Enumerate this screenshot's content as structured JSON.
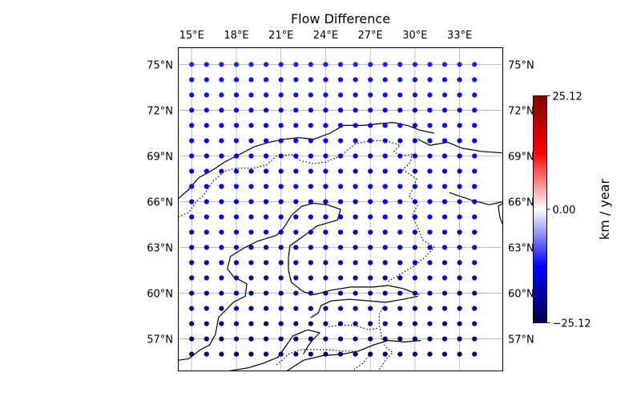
{
  "chart_data": {
    "type": "scatter",
    "title": "Flow Difference",
    "x_ticks": [
      {
        "value": 15,
        "label": "15°E"
      },
      {
        "value": 18,
        "label": "18°E"
      },
      {
        "value": 21,
        "label": "21°E"
      },
      {
        "value": 24,
        "label": "24°E"
      },
      {
        "value": 27,
        "label": "27°E"
      },
      {
        "value": 30,
        "label": "30°E"
      },
      {
        "value": 33,
        "label": "33°E"
      }
    ],
    "y_ticks": [
      {
        "value": 57,
        "label": "57°N"
      },
      {
        "value": 60,
        "label": "60°N"
      },
      {
        "value": 63,
        "label": "63°N"
      },
      {
        "value": 66,
        "label": "66°N"
      },
      {
        "value": 69,
        "label": "69°N"
      },
      {
        "value": 72,
        "label": "72°N"
      },
      {
        "value": 75,
        "label": "75°N"
      }
    ],
    "xlim": [
      14.1,
      35.9
    ],
    "ylim": [
      54.9,
      76.1
    ],
    "grid": true,
    "points": {
      "lon_start": 15,
      "lon_step": 1,
      "lon_count": 20,
      "lat_start": 56,
      "lat_step": 1,
      "lat_count": 20,
      "value_rows_south_to_north": [
        [
          -24,
          -24,
          -24,
          -24,
          -24,
          -24,
          -24,
          -24,
          -24,
          -24,
          -24,
          -24,
          -24,
          -24,
          -24,
          -24,
          -24,
          -24,
          -24,
          -24
        ],
        [
          -23,
          -23,
          -23,
          -23,
          -23,
          -23,
          -23,
          -23,
          -23,
          -23,
          -23,
          -23,
          -23,
          -23,
          -23,
          -23,
          -23,
          -23,
          -23,
          -23
        ],
        [
          -22,
          -22,
          -22,
          -22,
          -22,
          -22,
          -22,
          -22,
          -22,
          -22,
          -22,
          -22,
          -22,
          -22,
          -22,
          -22,
          -22,
          -22,
          -22,
          -22
        ],
        [
          -21,
          -21,
          -21,
          -21,
          -21,
          -21,
          -21,
          -21,
          -21,
          -21,
          -21,
          -21,
          -21,
          -21,
          -21,
          -21,
          -21,
          -21,
          -21,
          -21
        ],
        [
          -20,
          -20,
          -20,
          -20,
          -20,
          -20,
          -20,
          -20,
          -20,
          -20,
          -20,
          -20,
          -20,
          -20,
          -20,
          -20,
          -20,
          -20,
          -20,
          -20
        ],
        [
          -19,
          -19,
          -19,
          -19,
          -19,
          -19,
          -19,
          -19,
          -19,
          -19,
          -19,
          -19,
          -19,
          -19,
          -19,
          -19,
          -19,
          -19,
          -19,
          -19
        ],
        [
          -18,
          -18,
          -18,
          -18,
          -18,
          -18,
          -18,
          -18,
          -18,
          -18,
          -18,
          -18,
          -18,
          -18,
          -18,
          -18,
          -18,
          -18,
          -18,
          -18
        ],
        [
          -17,
          -17,
          -17,
          -17,
          -17,
          -17,
          -17,
          -17,
          -17,
          -17,
          -17,
          -17,
          -17,
          -17,
          -17,
          -17,
          -17,
          -17,
          -17,
          -17
        ],
        [
          -17,
          -17,
          -17,
          -17,
          -17,
          -17,
          -17,
          -17,
          -17,
          -17,
          -17,
          -17,
          -17,
          -17,
          -17,
          -17,
          -17,
          -17,
          -17,
          -17
        ],
        [
          -16,
          -16,
          -16,
          -16,
          -16,
          -16,
          -16,
          -16,
          -16,
          -16,
          -16,
          -16,
          -16,
          -16,
          -16,
          -16,
          -16,
          -16,
          -16,
          -16
        ],
        [
          -16,
          -16,
          -16,
          -16,
          -16,
          -16,
          -16,
          -16,
          -16,
          -16,
          -16,
          -16,
          -16,
          -16,
          -16,
          -16,
          -16,
          -16,
          -16,
          -16
        ],
        [
          -15,
          -15,
          -15,
          -15,
          -15,
          -15,
          -15,
          -15,
          -15,
          -15,
          -15,
          -15,
          -15,
          -15,
          -15,
          -15,
          -15,
          -15,
          -15,
          -15
        ],
        [
          -15,
          -15,
          -15,
          -15,
          -15,
          -15,
          -15,
          -15,
          -15,
          -15,
          -15,
          -15,
          -15,
          -15,
          -15,
          -15,
          -15,
          -15,
          -15,
          -15
        ],
        [
          -14,
          -14,
          -14,
          -14,
          -14,
          -14,
          -14,
          -14,
          -14,
          -14,
          -14,
          -14,
          -14,
          -14,
          -14,
          -14,
          -14,
          -14,
          -14,
          -14
        ],
        [
          -14,
          -14,
          -14,
          -14,
          -14,
          -14,
          -14,
          -14,
          -14,
          -14,
          -14,
          -14,
          -14,
          -14,
          -14,
          -14,
          -14,
          -14,
          -14,
          -14
        ],
        [
          -13,
          -13,
          -13,
          -13,
          -13,
          -13,
          -13,
          -13,
          -13,
          -13,
          -13,
          -13,
          -13,
          -13,
          -13,
          -13,
          -13,
          -13,
          -13,
          -13
        ],
        [
          -13,
          -13,
          -13,
          -13,
          -13,
          -13,
          -13,
          -13,
          -13,
          -13,
          -13,
          -13,
          -13,
          -13,
          -13,
          -13,
          -13,
          -13,
          -13,
          -13
        ],
        [
          -12,
          -12,
          -12,
          -12,
          -12,
          -12,
          -12,
          -12,
          -12,
          -12,
          -12,
          -12,
          -12,
          -12,
          -12,
          -12,
          -12,
          -12,
          -12,
          -12
        ],
        [
          -12,
          -12,
          -12,
          -12,
          -12,
          -12,
          -12,
          -12,
          -12,
          -12,
          -12,
          -12,
          -12,
          -12,
          -12,
          -12,
          -12,
          -12,
          -12,
          -12
        ],
        [
          -11,
          -11,
          -11,
          -11,
          -11,
          -11,
          -11,
          -11,
          -11,
          -11,
          -11,
          -11,
          -11,
          -11,
          -11,
          -11,
          -11,
          -11,
          -11,
          -11
        ]
      ]
    },
    "coastlines": [
      [
        [
          14.1,
          66.2
        ],
        [
          14.8,
          66.8
        ],
        [
          15.5,
          67.6
        ],
        [
          16.1,
          67.9
        ],
        [
          16.6,
          68.2
        ],
        [
          17.2,
          68.6
        ],
        [
          18.2,
          69.1
        ],
        [
          19.2,
          69.6
        ],
        [
          20.2,
          69.9
        ],
        [
          21.2,
          70.1
        ],
        [
          22.2,
          70.2
        ],
        [
          23.2,
          70.1
        ],
        [
          24.3,
          70.5
        ],
        [
          25.2,
          71.0
        ],
        [
          26.5,
          71.0
        ],
        [
          27.5,
          71.1
        ],
        [
          28.5,
          71.2
        ],
        [
          29.5,
          71.0
        ],
        [
          30.3,
          70.7
        ],
        [
          31.3,
          70.5
        ]
      ],
      [
        [
          30.2,
          70.1
        ],
        [
          31.0,
          69.7
        ],
        [
          32.2,
          69.9
        ],
        [
          33.2,
          69.5
        ],
        [
          34.5,
          69.3
        ],
        [
          35.9,
          69.2
        ]
      ],
      [
        [
          32.3,
          66.6
        ],
        [
          33.8,
          66.1
        ],
        [
          35.0,
          65.8
        ],
        [
          35.9,
          66.0
        ]
      ],
      [
        [
          35.9,
          64.5
        ],
        [
          35.7,
          65.0
        ],
        [
          35.6,
          65.7
        ],
        [
          35.9,
          65.9
        ]
      ],
      [
        [
          21.4,
          54.9
        ],
        [
          22.5,
          55.6
        ],
        [
          23.8,
          55.9
        ],
        [
          25.1,
          56.0
        ],
        [
          26.2,
          56.2
        ],
        [
          27.2,
          56.6
        ],
        [
          28.2,
          56.9
        ],
        [
          29.3,
          56.8
        ],
        [
          30.4,
          56.9
        ]
      ],
      [
        [
          22.5,
          56.0
        ],
        [
          22.8,
          56.5
        ],
        [
          23.1,
          56.9
        ],
        [
          23.6,
          57.4
        ],
        [
          22.8,
          57.6
        ],
        [
          21.8,
          57.2
        ],
        [
          21.3,
          56.5
        ],
        [
          20.8,
          55.8
        ],
        [
          19.8,
          55.4
        ],
        [
          18.8,
          55.1
        ],
        [
          17.5,
          54.9
        ]
      ],
      [
        [
          14.1,
          55.6
        ],
        [
          14.8,
          55.7
        ],
        [
          15.6,
          56.3
        ],
        [
          16.2,
          56.6
        ],
        [
          16.6,
          57.3
        ],
        [
          16.8,
          58.4
        ],
        [
          17.3,
          58.9
        ],
        [
          17.8,
          59.4
        ],
        [
          18.6,
          59.8
        ],
        [
          18.7,
          60.6
        ],
        [
          17.8,
          61.1
        ],
        [
          17.4,
          61.6
        ],
        [
          17.6,
          62.4
        ],
        [
          18.4,
          62.9
        ],
        [
          19.4,
          63.4
        ],
        [
          20.7,
          63.8
        ],
        [
          21.2,
          64.3
        ],
        [
          21.7,
          65.1
        ],
        [
          22.4,
          65.7
        ],
        [
          23.2,
          65.9
        ],
        [
          24.1,
          65.8
        ],
        [
          25.0,
          65.5
        ],
        [
          24.8,
          64.8
        ],
        [
          23.4,
          64.4
        ],
        [
          22.6,
          63.8
        ],
        [
          21.6,
          63.1
        ],
        [
          21.5,
          62.3
        ],
        [
          21.5,
          61.5
        ],
        [
          21.7,
          60.7
        ],
        [
          22.5,
          60.1
        ],
        [
          23.2,
          59.9
        ],
        [
          24.4,
          60.2
        ],
        [
          25.7,
          60.4
        ],
        [
          27.2,
          60.4
        ],
        [
          28.2,
          60.5
        ],
        [
          29.2,
          60.3
        ],
        [
          30.3,
          59.9
        ]
      ],
      [
        [
          24.4,
          59.5
        ],
        [
          25.6,
          59.6
        ],
        [
          26.9,
          59.5
        ],
        [
          28.0,
          59.4
        ],
        [
          29.2,
          59.6
        ],
        [
          30.2,
          59.8
        ]
      ],
      [
        [
          23.0,
          58.4
        ],
        [
          23.5,
          58.7
        ],
        [
          23.7,
          59.2
        ],
        [
          24.4,
          59.5
        ]
      ]
    ],
    "borders": [
      [
        [
          14.1,
          65.0
        ],
        [
          14.8,
          65.3
        ],
        [
          15.4,
          66.1
        ],
        [
          15.8,
          66.4
        ],
        [
          16.4,
          67.3
        ],
        [
          17.2,
          68.0
        ],
        [
          18.0,
          68.2
        ],
        [
          19.1,
          68.2
        ],
        [
          20.0,
          68.4
        ],
        [
          20.7,
          69.0
        ],
        [
          21.7,
          69.1
        ],
        [
          22.3,
          68.7
        ],
        [
          23.1,
          68.5
        ],
        [
          24.0,
          68.6
        ],
        [
          25.0,
          69.0
        ],
        [
          26.0,
          69.8
        ],
        [
          27.0,
          70.0
        ],
        [
          28.1,
          70.0
        ],
        [
          29.0,
          69.7
        ],
        [
          28.6,
          69.3
        ],
        [
          29.0,
          69.0
        ],
        [
          29.8,
          69.1
        ],
        [
          29.7,
          68.6
        ],
        [
          29.2,
          68.1
        ],
        [
          30.1,
          67.5
        ],
        [
          29.9,
          66.9
        ],
        [
          29.6,
          66.4
        ],
        [
          30.2,
          65.8
        ],
        [
          29.8,
          65.1
        ],
        [
          30.2,
          64.3
        ],
        [
          30.5,
          63.5
        ],
        [
          31.3,
          63.0
        ],
        [
          30.6,
          62.3
        ],
        [
          30.0,
          61.8
        ],
        [
          29.1,
          61.3
        ],
        [
          28.1,
          60.7
        ]
      ],
      [
        [
          27.6,
          55.0
        ],
        [
          28.1,
          55.7
        ],
        [
          28.5,
          56.1
        ],
        [
          28.0,
          56.5
        ],
        [
          27.8,
          57.0
        ],
        [
          27.6,
          57.9
        ],
        [
          27.6,
          58.6
        ],
        [
          27.9,
          59.2
        ]
      ],
      [
        [
          25.9,
          55.0
        ],
        [
          26.5,
          55.4
        ],
        [
          26.9,
          55.9
        ]
      ],
      [
        [
          20.7,
          55.3
        ],
        [
          21.2,
          55.7
        ],
        [
          21.5,
          56.0
        ],
        [
          22.3,
          56.3
        ],
        [
          23.2,
          56.3
        ],
        [
          24.2,
          56.3
        ],
        [
          25.2,
          56.2
        ],
        [
          26.2,
          56.2
        ],
        [
          27.2,
          56.6
        ]
      ],
      [
        [
          24.2,
          57.8
        ],
        [
          25.0,
          57.9
        ],
        [
          25.9,
          57.9
        ],
        [
          26.9,
          57.6
        ],
        [
          27.5,
          57.7
        ]
      ]
    ],
    "colorbar": {
      "label": "km / year",
      "ticks": [
        {
          "value": 25.12,
          "label": "25.12"
        },
        {
          "value": 0.0,
          "label": "0.00"
        },
        {
          "value": -25.12,
          "label": "−25.12"
        }
      ],
      "vmin": -25.12,
      "vmax": 25.12,
      "colormap": "seismic",
      "colors": [
        "#00004d",
        "#0000ff",
        "#ffffff",
        "#ff0000",
        "#800000"
      ]
    },
    "colors": {
      "coastline": "#000000",
      "border": "#000000",
      "grid": "#b0b0b0",
      "axes": "#000000"
    }
  }
}
